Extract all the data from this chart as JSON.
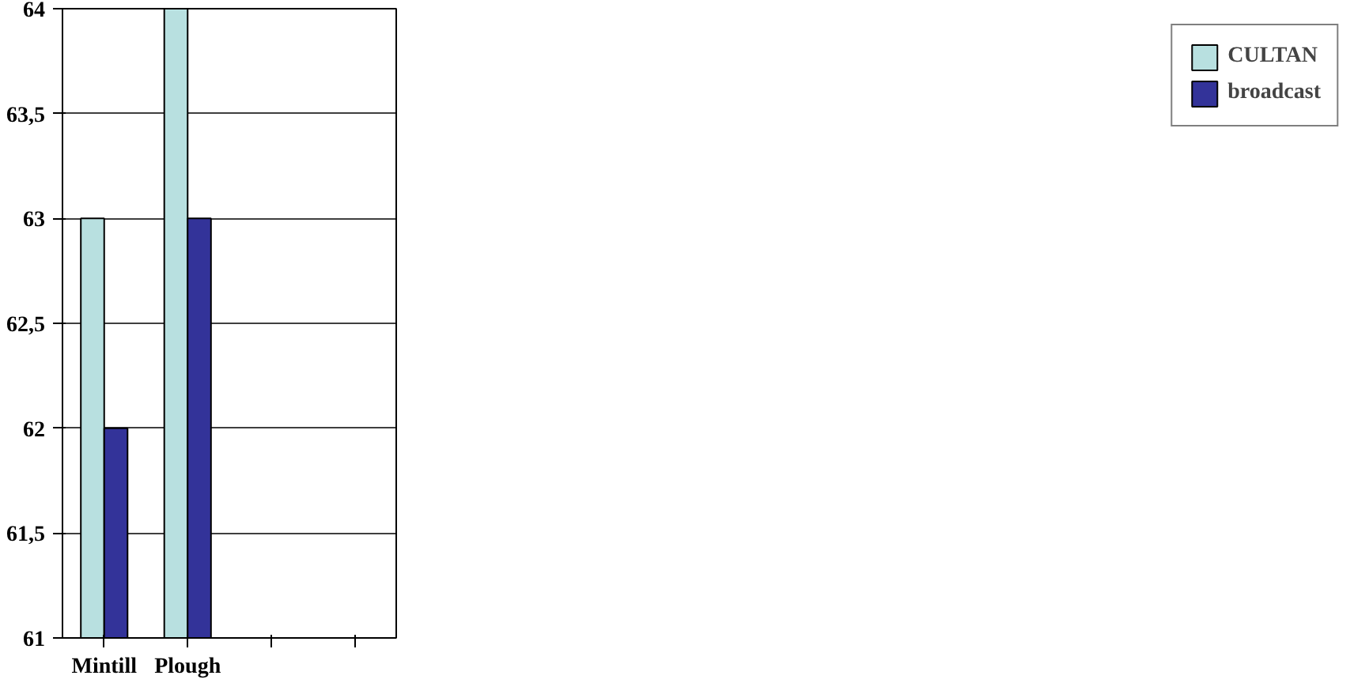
{
  "chart_data": {
    "type": "bar",
    "categories": [
      "Mintill",
      "Plough",
      null,
      null
    ],
    "series": [
      {
        "name": "CULTAN",
        "color": "#b8e0e0",
        "values": [
          63,
          64,
          null,
          null
        ]
      },
      {
        "name": "broadcast",
        "color": "#333399",
        "values": [
          62,
          63,
          null,
          null
        ]
      }
    ],
    "ylim": [
      61,
      64
    ],
    "yticks": [
      61,
      {
        "value": 61.5,
        "label": "61,5"
      },
      62,
      {
        "value": 62.5,
        "label": "62,5"
      },
      63,
      {
        "value": 63.5,
        "label": "63,5"
      },
      64
    ],
    "grid": "y",
    "legend": "right"
  }
}
